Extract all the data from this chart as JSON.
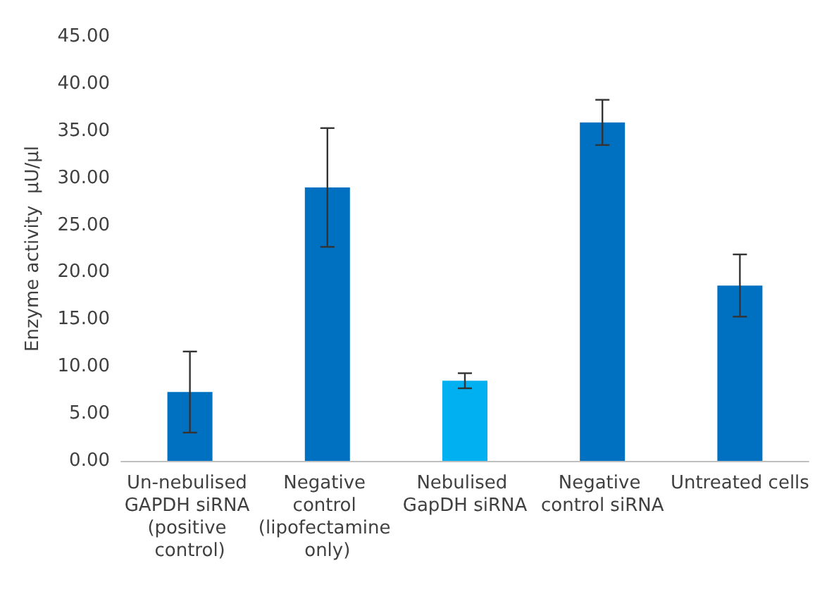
{
  "chart_data": {
    "type": "bar",
    "ylabel": "Enzyme activity  µU/µl",
    "categories": [
      "Un-nebulised GAPDH siRNA (positive control)",
      "Negative control (lipofectamine only)",
      "Nebulised GapDH siRNA",
      "Negative control siRNA",
      "Untreated cells"
    ],
    "values": [
      7.3,
      29.0,
      8.5,
      35.9,
      18.6
    ],
    "colors": [
      "#0070c0",
      "#0070c0",
      "#00b0f0",
      "#0070c0",
      "#0070c0"
    ],
    "errors": [
      4.3,
      6.3,
      0.8,
      2.4,
      3.3
    ],
    "ylim": [
      0,
      45
    ],
    "yticks": [
      {
        "value": 0,
        "label": "0.00"
      },
      {
        "value": 5,
        "label": "5.00"
      },
      {
        "value": 10,
        "label": "10.00"
      },
      {
        "value": 15,
        "label": "15.00"
      },
      {
        "value": 20,
        "label": "20.00"
      },
      {
        "value": 25,
        "label": "25.00"
      },
      {
        "value": 30,
        "label": "30.00"
      },
      {
        "value": 35,
        "label": "35.00"
      },
      {
        "value": 40,
        "label": "40.00"
      },
      {
        "value": 45,
        "label": "45.00"
      }
    ],
    "grid": false
  }
}
